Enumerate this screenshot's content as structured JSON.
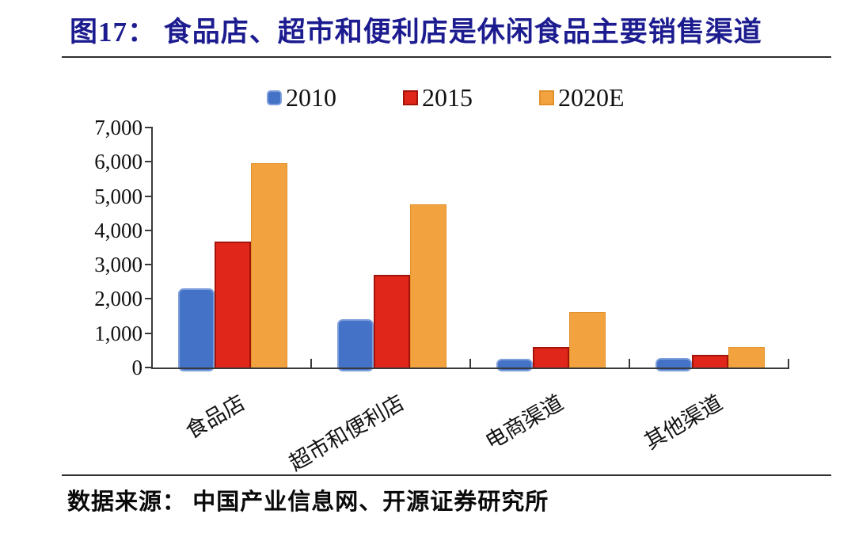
{
  "figure": {
    "title": "图17：  食品店、超市和便利店是休闲食品主要销售渠道",
    "source": "数据来源： 中国产业信息网、开源证券研究所"
  },
  "chart_data": {
    "type": "bar",
    "title": "食品店、超市和便利店是休闲食品主要销售渠道",
    "categories": [
      "食品店",
      "超市和便利店",
      "电商渠道",
      "其他渠道"
    ],
    "series": [
      {
        "name": "2010",
        "color": "#4472C6",
        "border": "#7E9EDC",
        "values": [
          2300,
          1400,
          260,
          280
        ]
      },
      {
        "name": "2015",
        "color": "#E0261B",
        "border": "#A31309",
        "values": [
          3680,
          2700,
          600,
          380
        ]
      },
      {
        "name": "2020E",
        "color": "#F2A23E",
        "border": "#E3912C",
        "values": [
          5970,
          4750,
          1620,
          590
        ]
      }
    ],
    "xlabel": "",
    "ylabel": "",
    "ylim": [
      0,
      7000
    ],
    "ytick_interval": 1000,
    "ytick_labels": [
      "0",
      "1,000",
      "2,000",
      "3,000",
      "4,000",
      "5,000",
      "6,000",
      "7,000"
    ],
    "legend_position": "top",
    "grid": false,
    "axis_color": "#3A3A3A"
  },
  "colors": {
    "title": "#1C1C90",
    "divider": "#2F2F2F",
    "text": "#111111"
  }
}
